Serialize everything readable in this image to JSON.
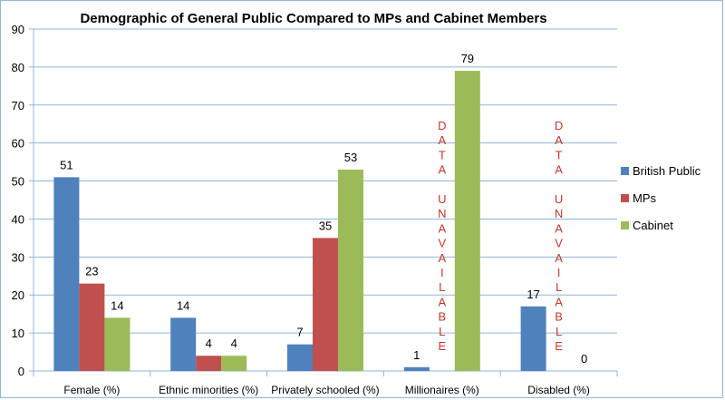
{
  "chart_data": {
    "type": "bar",
    "title": "Demographic of General Public Compared to MPs and Cabinet Members",
    "categories": [
      "Female (%)",
      "Ethnic minorities (%)",
      "Privately schooled (%)",
      "Millionaires (%)",
      "Disabled (%)"
    ],
    "series": [
      {
        "name": "British Public",
        "color": "#4f81bd",
        "values": [
          51,
          14,
          7,
          1,
          17
        ]
      },
      {
        "name": "MPs",
        "color": "#c0504d",
        "values": [
          23,
          4,
          35,
          null,
          null
        ]
      },
      {
        "name": "Cabinet",
        "color": "#9bbb59",
        "values": [
          14,
          4,
          53,
          79,
          0
        ]
      }
    ],
    "ylim": [
      0,
      90
    ],
    "yticks": [
      0,
      10,
      20,
      30,
      40,
      50,
      60,
      70,
      80,
      90
    ],
    "grid": true,
    "legend": "right",
    "annotations": [
      {
        "category": "Millionaires (%)",
        "series": "MPs",
        "text": "DATA UNAVAILABLE",
        "color": "#c0392b"
      },
      {
        "category": "Disabled (%)",
        "series": "MPs",
        "text": "DATA UNAVAILABLE",
        "color": "#c0392b"
      }
    ]
  }
}
